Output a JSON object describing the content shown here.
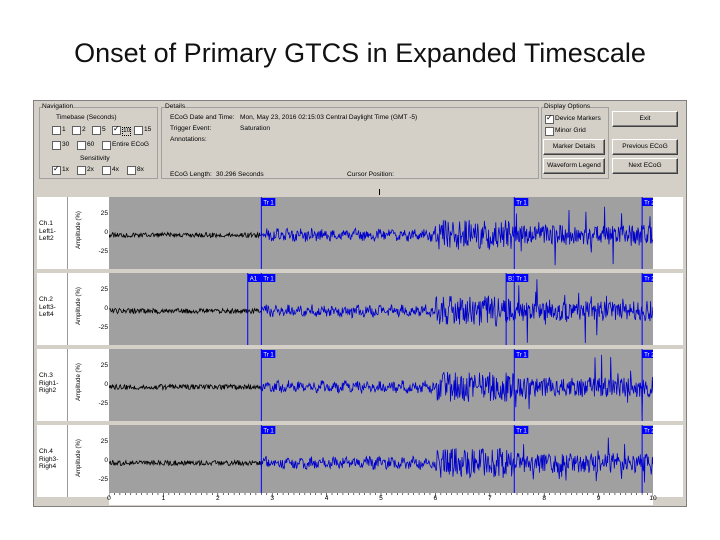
{
  "slide_title": "Onset of Primary GTCS in Expanded Timescale",
  "navigation": {
    "group_label": "Navigation",
    "timebase_label": "Timebase (Seconds)",
    "timebase_options": [
      {
        "label": "1",
        "checked": false
      },
      {
        "label": "2",
        "checked": false
      },
      {
        "label": "5",
        "checked": false
      },
      {
        "label": "10",
        "checked": true
      },
      {
        "label": "15",
        "checked": false
      },
      {
        "label": "30",
        "checked": false
      },
      {
        "label": "60",
        "checked": false
      },
      {
        "label": "Entire ECoG",
        "checked": false
      }
    ],
    "sensitivity_label": "Sensitivity",
    "sensitivity_options": [
      {
        "label": "1x",
        "checked": true
      },
      {
        "label": "2x",
        "checked": false
      },
      {
        "label": "4x",
        "checked": false
      },
      {
        "label": "8x",
        "checked": false
      }
    ]
  },
  "details": {
    "group_label": "Details",
    "datetime_label": "ECoG Date and Time:",
    "datetime_value": "Mon, May 23, 2016  02:15:03 Central Daylight Time (GMT -5)",
    "trigger_label": "Trigger Event:",
    "trigger_value": "Saturation",
    "annotations_label": "Annotations:",
    "length_label": "ECoG Length:",
    "length_value": "30.296  Seconds",
    "cursor_label": "Cursor Position:"
  },
  "display_options": {
    "group_label": "Display Options",
    "device_markers": {
      "label": "Device Markers",
      "checked": true
    },
    "minor_grid": {
      "label": "Minor Grid",
      "checked": false
    },
    "marker_details_button": "Marker Details",
    "waveform_legend_button": "Waveform Legend"
  },
  "buttons": {
    "exit": "Exit",
    "previous": "Previous ECoG",
    "next": "Next ECoG"
  },
  "amplitude_axis": {
    "label": "Amplitude (%)",
    "ticks": [
      "25",
      "0",
      "-25"
    ]
  },
  "channels": [
    {
      "name": [
        "Ch.1",
        "Left1-",
        "Left2"
      ],
      "markers": [
        {
          "t": 2.8,
          "label": "Tr 1"
        },
        {
          "t": 7.45,
          "label": "Tr 1"
        },
        {
          "t": 9.8,
          "label": "Tr 2"
        }
      ],
      "colors": {
        "pre": "#000000",
        "post": "#0000cc"
      }
    },
    {
      "name": [
        "Ch.2",
        "Left3-",
        "Left4"
      ],
      "markers": [
        {
          "t": 2.55,
          "label": "A1"
        },
        {
          "t": 2.8,
          "label": "Tr 1"
        },
        {
          "t": 7.3,
          "label": "B1"
        },
        {
          "t": 7.45,
          "label": "Tr 1"
        },
        {
          "t": 9.8,
          "label": "Tr 2"
        }
      ],
      "colors": {
        "pre": "#000000",
        "post": "#0000cc"
      }
    },
    {
      "name": [
        "Ch.3",
        "Righ1-",
        "Righ2"
      ],
      "markers": [
        {
          "t": 2.8,
          "label": "Tr 1"
        },
        {
          "t": 7.45,
          "label": "Tr 1"
        },
        {
          "t": 9.8,
          "label": "Tr 2"
        }
      ],
      "colors": {
        "pre": "#000000",
        "post": "#0000cc"
      }
    },
    {
      "name": [
        "Ch.4",
        "Righ3-",
        "Righ4"
      ],
      "markers": [
        {
          "t": 2.8,
          "label": "Tr 1"
        },
        {
          "t": 7.45,
          "label": "Tr 1"
        },
        {
          "t": 9.8,
          "label": "Tr 2"
        }
      ],
      "colors": {
        "pre": "#000000",
        "post": "#0000cc"
      }
    }
  ],
  "time_axis": {
    "ticks": [
      "0",
      "1",
      "2",
      "3",
      "4",
      "5",
      "6",
      "7",
      "8",
      "9",
      "10"
    ],
    "max": 10
  },
  "colors": {
    "window_bg": "#d4d0c8",
    "trace_bg": "#a0a0a0",
    "marker": "#0000ff",
    "trace_black": "#000000",
    "trace_blue": "#0000cc"
  }
}
